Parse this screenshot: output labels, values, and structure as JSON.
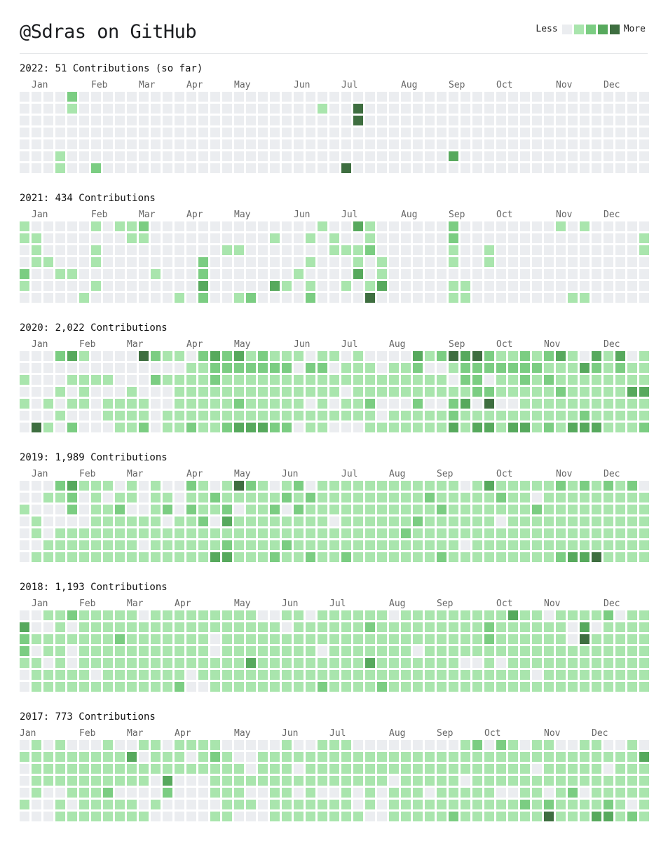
{
  "header": {
    "title": "@Sdras on GitHub",
    "legend": {
      "less": "Less",
      "more": "More"
    }
  },
  "colors": {
    "level0": "#ebedf0",
    "level1": "#a9e5ad",
    "level2": "#7bcd82",
    "level3": "#57a95d",
    "level4": "#3e6e40"
  },
  "years": [
    {
      "title": "2022: 51 Contributions (so far)",
      "months": [
        {
          "label": "Jan",
          "week": 1
        },
        {
          "label": "Feb",
          "week": 6
        },
        {
          "label": "Mar",
          "week": 10
        },
        {
          "label": "Apr",
          "week": 14
        },
        {
          "label": "May",
          "week": 18
        },
        {
          "label": "Jun",
          "week": 23
        },
        {
          "label": "Jul",
          "week": 27
        },
        {
          "label": "Aug",
          "week": 32
        },
        {
          "label": "Sep",
          "week": 36
        },
        {
          "label": "Oct",
          "week": 40
        },
        {
          "label": "Nov",
          "week": 45
        },
        {
          "label": "Dec",
          "week": 49
        }
      ],
      "grid": [
        "000020000000000000000000000000000000000000000000000000",
        "000010000000000000000000010040000000000000000000000000",
        "000000000000000000000000000040000000000000000000000000",
        "000000000000000000000000000000000000000000000000000001",
        "000000000000000000000000000000000000000000000000000000",
        "000100000000000000000000000000000000300000000000000000",
        "000100200000000000000000000400000000000000000000000000"
      ]
    },
    {
      "title": "2021: 434 Contributions",
      "months": [
        {
          "label": "Jan",
          "week": 1
        },
        {
          "label": "Feb",
          "week": 6
        },
        {
          "label": "Mar",
          "week": 10
        },
        {
          "label": "Apr",
          "week": 14
        },
        {
          "label": "May",
          "week": 18
        },
        {
          "label": "Jun",
          "week": 23
        },
        {
          "label": "Jul",
          "week": 27
        },
        {
          "label": "Aug",
          "week": 32
        },
        {
          "label": "Sep",
          "week": 36
        },
        {
          "label": "Oct",
          "week": 40
        },
        {
          "label": "Nov",
          "week": 45
        },
        {
          "label": "Dec",
          "week": 49
        }
      ],
      "grid": [
        "100000101120000000000000010031000000200000000101000000",
        "110000000110000000000100101001000000200000000000000010",
        "010000100000000001100000001112000000100100000000000010",
        "011000100000000200000000100010100000100100000000000000",
        "200110000001000200000001000030100000000000000000000000",
        "100000100000000300000310100101300000110000000000000000",
        "000001000000010200120000200004000000110000000011000000"
      ]
    },
    {
      "title": "2020: 2,022 Contributions",
      "months": [
        {
          "label": "Jan",
          "week": 1
        },
        {
          "label": "Feb",
          "week": 5
        },
        {
          "label": "Mar",
          "week": 9
        },
        {
          "label": "Apr",
          "week": 14
        },
        {
          "label": "May",
          "week": 18
        },
        {
          "label": "Jun",
          "week": 23
        },
        {
          "label": "Jul",
          "week": 27
        },
        {
          "label": "Aug",
          "week": 31
        },
        {
          "label": "Sep",
          "week": 36
        },
        {
          "label": "Oct",
          "week": 40
        },
        {
          "label": "Nov",
          "week": 44
        },
        {
          "label": "Dec",
          "week": 49
        }
      ],
      "grid": [
        "000231000042110232312111011010000312434211212310313011200000101",
        "000000000000001122222220220111011200122222221113212111101010",
        "100011110002111121111111111111111111022011212111111111101",
        "000101000100011111111111111011111111112211111211111331100",
        "101011011110011111211111010112000200230400111111111112001021",
        "000100011110111111111111111111011111211111111112111111101",
        "041020001120112112333220110001111111313313312133311122111001"
      ]
    },
    {
      "title": "2019: 1,989 Contributions",
      "months": [
        {
          "label": "Jan",
          "week": 1
        },
        {
          "label": "Feb",
          "week": 5
        },
        {
          "label": "Mar",
          "week": 9
        },
        {
          "label": "Apr",
          "week": 14
        },
        {
          "label": "May",
          "week": 18
        },
        {
          "label": "Jun",
          "week": 22
        },
        {
          "label": "Jul",
          "week": 27
        },
        {
          "label": "Aug",
          "week": 31
        },
        {
          "label": "Sep",
          "week": 35
        },
        {
          "label": "Oct",
          "week": 40
        },
        {
          "label": "Nov",
          "week": 45
        },
        {
          "label": "Dec",
          "week": 49
        }
      ],
      "grid": [
        "000231110101002101421012011111111111101311111212121200000110",
        "001120101101101121111121211111111121111121101111111111111111",
        "100020112001202112011202111111111112111111121111111111111101",
        "010000111111011203111111110111111211111101111111111111110111",
        "010111111111111111111111111111112111111111111111111111013110",
        "001111111101111112111121111111111111101111111111111111002010",
        "011111111111111133111211211211111112111111111233411111111212"
      ]
    },
    {
      "title": "2018: 1,193 Contributions",
      "months": [
        {
          "label": "Jan",
          "week": 1
        },
        {
          "label": "Feb",
          "week": 5
        },
        {
          "label": "Mar",
          "week": 9
        },
        {
          "label": "Apr",
          "week": 13
        },
        {
          "label": "May",
          "week": 18
        },
        {
          "label": "Jun",
          "week": 22
        },
        {
          "label": "Jul",
          "week": 26
        },
        {
          "label": "Aug",
          "week": 31
        },
        {
          "label": "Sep",
          "week": 35
        },
        {
          "label": "Oct",
          "week": 40
        },
        {
          "label": "Nov",
          "week": 44
        },
        {
          "label": "Dec",
          "week": 49
        }
      ],
      "grid": [
        "001121111101111111110011011111101111111113110111120111010101",
        "300101111111111111111101111112111111111211111103011111001110",
        "211111112111111101111111111111111111111211111104111111111101",
        "201101111111111101111111101111111011111111111111111111011110",
        "110101111111111111131111111113111111100101111111111111111110",
        "011111011111110111111111111111111111111111101111111111110110",
        "011111111111120011111111121111211111111111111111111111100001"
      ]
    },
    {
      "title": "2017: 773 Contributions",
      "months": [
        {
          "label": "Jan",
          "week": 0
        },
        {
          "label": "Feb",
          "week": 5
        },
        {
          "label": "Mar",
          "week": 9
        },
        {
          "label": "Apr",
          "week": 13
        },
        {
          "label": "May",
          "week": 18
        },
        {
          "label": "Jun",
          "week": 22
        },
        {
          "label": "Jul",
          "week": 26
        },
        {
          "label": "Aug",
          "week": 31
        },
        {
          "label": "Sep",
          "week": 35
        },
        {
          "label": "Oct",
          "week": 39
        },
        {
          "label": "Nov",
          "week": 44
        },
        {
          "label": "Dec",
          "week": 48
        }
      ],
      "grid": [
        "010100010011011110000010011100000000012021011001100101322112",
        "111111111301110121001111111111111111111111111111111131113012",
        "011111111111111111101110111111111111111111101111101111031113",
        "011111111110300011111111111111101111101111111111111111221114",
        "010011120000200011100110100101011101111100110120111111211111",
        "100101111101000001110111111101011111111111212111121011111114",
        "000111111110000011000111111110011111211111114111331213121113"
      ]
    }
  ]
}
